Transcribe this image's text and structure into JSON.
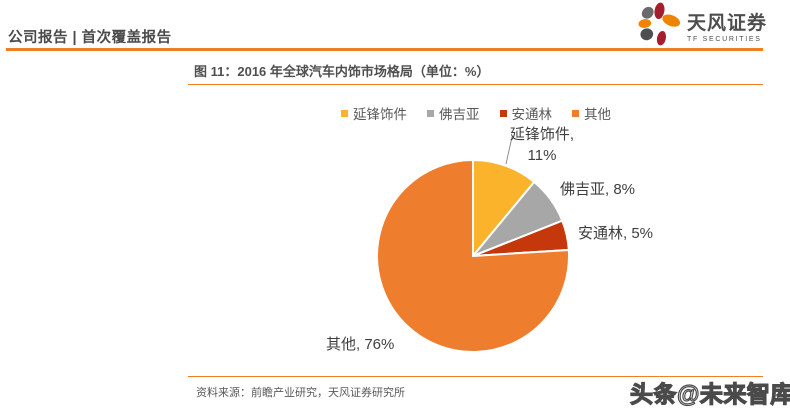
{
  "page": {
    "header": {
      "report_type": "公司报告 | 首次覆盖报告",
      "brand": {
        "name_cn": "天风证券",
        "name_en": "TF SECURITIES"
      }
    },
    "figure": {
      "title": "图 11：2016 年全球汽车内饰市场格局（单位：%）",
      "source": "资料来源：前瞻产业研究，天风证券研究所"
    },
    "watermark": "头条@未来智库"
  },
  "colors": {
    "accent": "#EE7F22",
    "slice_stroke": "#FFFFFF",
    "leader_line": "#8C8C8C"
  },
  "chart_data": {
    "type": "pie",
    "title": "2016 年全球汽车内饰市场格局",
    "unit": "%",
    "legend_position": "top",
    "start_angle_deg": 0,
    "direction": "clockwise",
    "slices": [
      {
        "name": "延锋饰件",
        "value": 11,
        "color": "#FBB32C"
      },
      {
        "name": "佛吉亚",
        "value": 8,
        "color": "#A7A7A7"
      },
      {
        "name": "安通林",
        "value": 5,
        "color": "#C5380C"
      },
      {
        "name": "其他",
        "value": 76,
        "color": "#EE7D2E"
      }
    ]
  }
}
